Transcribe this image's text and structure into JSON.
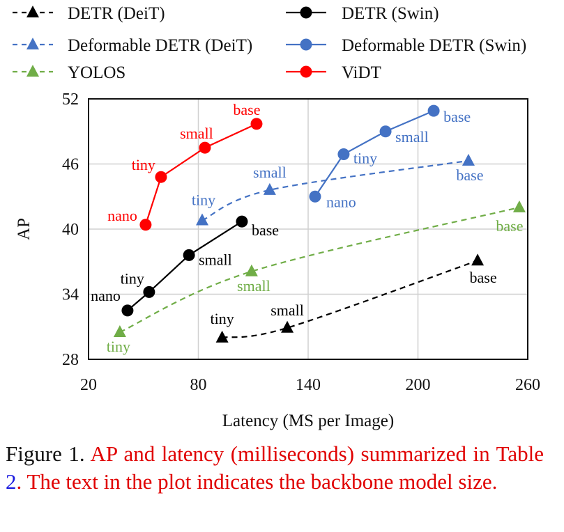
{
  "chart_data": {
    "type": "line",
    "xlabel": "Latency (MS per Image)",
    "ylabel": "AP",
    "xlim": [
      20,
      260
    ],
    "ylim": [
      28,
      52
    ],
    "xticks": [
      20,
      80,
      140,
      200,
      260
    ],
    "yticks": [
      28,
      34,
      40,
      46,
      52
    ],
    "grid": true,
    "legend_placement": "top",
    "series": [
      {
        "name": "DETR (DeiT)",
        "color": "#000000",
        "dash": true,
        "marker": "triangle",
        "points": [
          {
            "label": "tiny",
            "x": 93,
            "y": 30.0
          },
          {
            "label": "small",
            "x": 128.6,
            "y": 30.9
          },
          {
            "label": "base",
            "x": 232.6,
            "y": 37.1
          }
        ]
      },
      {
        "name": "DETR (Swin)",
        "color": "#000000",
        "dash": false,
        "marker": "circle",
        "points": [
          {
            "label": "nano",
            "x": 41.3,
            "y": 32.5
          },
          {
            "label": "tiny",
            "x": 53.1,
            "y": 34.2
          },
          {
            "label": "small",
            "x": 74.9,
            "y": 37.6
          },
          {
            "label": "base",
            "x": 103.8,
            "y": 40.7
          }
        ]
      },
      {
        "name": "Deformable DETR (DeiT)",
        "color": "#4472c4",
        "dash": true,
        "marker": "triangle",
        "points": [
          {
            "label": "tiny",
            "x": 82.1,
            "y": 40.8
          },
          {
            "label": "small",
            "x": 119,
            "y": 43.6
          },
          {
            "label": "base",
            "x": 227.6,
            "y": 46.3
          }
        ]
      },
      {
        "name": "Deformable DETR (Swin)",
        "color": "#4472c4",
        "dash": false,
        "marker": "circle",
        "points": [
          {
            "label": "nano",
            "x": 143.8,
            "y": 43.0
          },
          {
            "label": "tiny",
            "x": 159.4,
            "y": 46.9
          },
          {
            "label": "small",
            "x": 182.3,
            "y": 49.0
          },
          {
            "label": "base",
            "x": 208.6,
            "y": 50.9
          }
        ]
      },
      {
        "name": "YOLOS",
        "color": "#70ad47",
        "dash": true,
        "marker": "triangle",
        "points": [
          {
            "label": "tiny",
            "x": 37.1,
            "y": 30.5
          },
          {
            "label": "small",
            "x": 109.1,
            "y": 36.1
          },
          {
            "label": "base",
            "x": 255.4,
            "y": 42.0
          }
        ]
      },
      {
        "name": "ViDT",
        "color": "#ff0000",
        "dash": false,
        "marker": "circle",
        "points": [
          {
            "label": "nano",
            "x": 51.2,
            "y": 40.4
          },
          {
            "label": "tiny",
            "x": 59.6,
            "y": 44.8
          },
          {
            "label": "small",
            "x": 83.6,
            "y": 47.5
          },
          {
            "label": "base",
            "x": 111.8,
            "y": 49.7
          }
        ]
      }
    ]
  },
  "caption": {
    "label": "Figure 1.",
    "text_1": "AP and latency (milliseconds) summa­rized in Table",
    "table_ref": "2",
    "text_2": ". The text in the plot indicates the backbone model size."
  }
}
